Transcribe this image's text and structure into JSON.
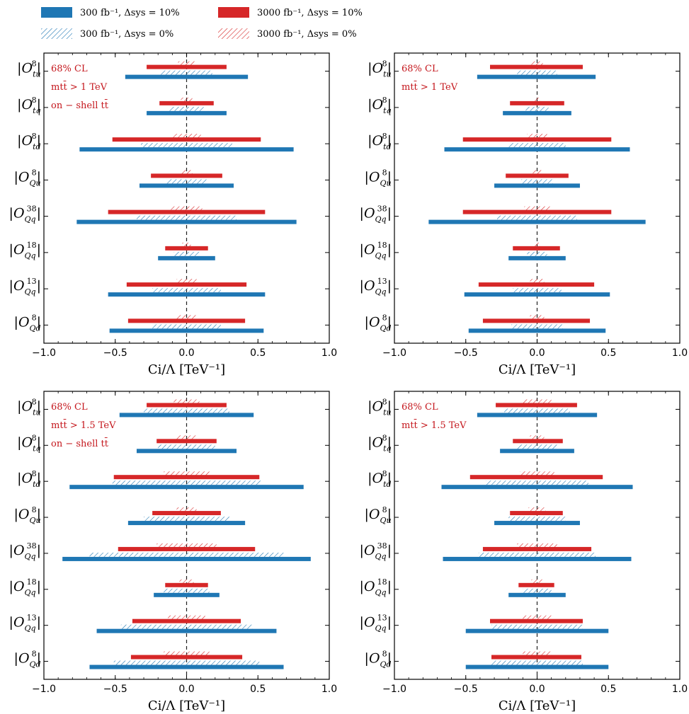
{
  "colors": {
    "blue": "#1f77b4",
    "red": "#d62728",
    "annotation": "#c4161c"
  },
  "legend": [
    {
      "label": "300 fb⁻¹,  Δsys = 10%",
      "color": "#1f77b4",
      "style": "solid"
    },
    {
      "label": "3000 fb⁻¹,  Δsys = 10%",
      "color": "#d62728",
      "style": "solid"
    },
    {
      "label": "300 fb⁻¹,  Δsys = 0%",
      "color": "#1f77b4",
      "style": "hatched"
    },
    {
      "label": "3000 fb⁻¹,  Δsys = 0%",
      "color": "#d62728",
      "style": "hatched"
    }
  ],
  "chart_data": [
    {
      "type": "bar",
      "orientation": "horizontal-interval",
      "xlabel": "Ci/Λ [TeV⁻¹]",
      "xlim": [
        -1.0,
        1.0
      ],
      "xticks": [
        "−1.0",
        "−0.5",
        "0.0",
        "0.5",
        "1.0"
      ],
      "annotations": [
        "68% CL",
        "mtt̄ > 1 TeV",
        "on − shell tt̄"
      ],
      "categories": [
        {
          "base": "O",
          "sup": "8",
          "sub": "tu"
        },
        {
          "base": "O",
          "sup": "8",
          "sub": "tq"
        },
        {
          "base": "O",
          "sup": "8",
          "sub": "td"
        },
        {
          "base": "O",
          "sup": "8",
          "sub": "Qu"
        },
        {
          "base": "O",
          "sup": "38",
          "sub": "Qq"
        },
        {
          "base": "O",
          "sup": "18",
          "sub": "Qq"
        },
        {
          "base": "O",
          "sup": "13",
          "sub": "Qq"
        },
        {
          "base": "O",
          "sup": "8",
          "sub": "Qd"
        }
      ],
      "blue_solid": [
        [
          -0.43,
          0.43
        ],
        [
          -0.28,
          0.28
        ],
        [
          -0.75,
          0.75
        ],
        [
          -0.33,
          0.33
        ],
        [
          -0.77,
          0.77
        ],
        [
          -0.2,
          0.2
        ],
        [
          -0.55,
          0.55
        ],
        [
          -0.54,
          0.54
        ]
      ],
      "blue_hatch": [
        [
          -0.18,
          0.18
        ],
        [
          -0.12,
          0.12
        ],
        [
          -0.32,
          0.32
        ],
        [
          -0.14,
          0.14
        ],
        [
          -0.35,
          0.35
        ],
        [
          -0.09,
          0.09
        ],
        [
          -0.24,
          0.24
        ],
        [
          -0.24,
          0.24
        ]
      ],
      "red_solid": [
        [
          -0.28,
          0.28
        ],
        [
          -0.19,
          0.19
        ],
        [
          -0.52,
          0.52
        ],
        [
          -0.25,
          0.25
        ],
        [
          -0.55,
          0.55
        ],
        [
          -0.15,
          0.15
        ],
        [
          -0.42,
          0.42
        ],
        [
          -0.41,
          0.41
        ]
      ],
      "red_hatch": [
        [
          -0.06,
          0.06
        ],
        [
          -0.04,
          0.04
        ],
        [
          -0.1,
          0.1
        ],
        [
          -0.04,
          0.04
        ],
        [
          -0.11,
          0.11
        ],
        [
          -0.03,
          0.03
        ],
        [
          -0.07,
          0.07
        ],
        [
          -0.07,
          0.07
        ]
      ]
    },
    {
      "type": "bar",
      "orientation": "horizontal-interval",
      "xlabel": "Ci/Λ [TeV⁻¹]",
      "xlim": [
        -1.0,
        1.0
      ],
      "xticks": [
        "−1.0",
        "−0.5",
        "0.0",
        "0.5",
        "1.0"
      ],
      "annotations": [
        "68% CL",
        "mtt̄ > 1 TeV"
      ],
      "categories": [
        {
          "base": "O",
          "sup": "8",
          "sub": "tu"
        },
        {
          "base": "O",
          "sup": "8",
          "sub": "tq"
        },
        {
          "base": "O",
          "sup": "8",
          "sub": "td"
        },
        {
          "base": "O",
          "sup": "8",
          "sub": "Qu"
        },
        {
          "base": "O",
          "sup": "38",
          "sub": "Qq"
        },
        {
          "base": "O",
          "sup": "18",
          "sub": "Qq"
        },
        {
          "base": "O",
          "sup": "13",
          "sub": "Qq"
        },
        {
          "base": "O",
          "sup": "8",
          "sub": "Qd"
        }
      ],
      "blue_solid": [
        [
          -0.42,
          0.41
        ],
        [
          -0.24,
          0.24
        ],
        [
          -0.65,
          0.65
        ],
        [
          -0.3,
          0.3
        ],
        [
          -0.76,
          0.76
        ],
        [
          -0.2,
          0.2
        ],
        [
          -0.51,
          0.51
        ],
        [
          -0.48,
          0.48
        ]
      ],
      "blue_hatch": [
        [
          -0.14,
          0.14
        ],
        [
          -0.08,
          0.08
        ],
        [
          -0.2,
          0.2
        ],
        [
          -0.11,
          0.11
        ],
        [
          -0.28,
          0.28
        ],
        [
          -0.07,
          0.07
        ],
        [
          -0.17,
          0.17
        ],
        [
          -0.18,
          0.18
        ]
      ],
      "red_solid": [
        [
          -0.33,
          0.32
        ],
        [
          -0.19,
          0.19
        ],
        [
          -0.52,
          0.52
        ],
        [
          -0.22,
          0.22
        ],
        [
          -0.52,
          0.52
        ],
        [
          -0.17,
          0.16
        ],
        [
          -0.41,
          0.4
        ],
        [
          -0.38,
          0.37
        ]
      ],
      "red_hatch": [
        [
          -0.04,
          0.04
        ],
        [
          -0.02,
          0.02
        ],
        [
          -0.07,
          0.07
        ],
        [
          -0.03,
          0.03
        ],
        [
          -0.09,
          0.09
        ],
        [
          -0.02,
          0.02
        ],
        [
          -0.05,
          0.05
        ],
        [
          -0.05,
          0.05
        ]
      ]
    },
    {
      "type": "bar",
      "orientation": "horizontal-interval",
      "xlabel": "Ci/Λ [TeV⁻¹]",
      "xlim": [
        -1.0,
        1.0
      ],
      "xticks": [
        "−1.0",
        "−0.5",
        "0.0",
        "0.5",
        "1.0"
      ],
      "annotations": [
        "68% CL",
        "mtt̄ > 1.5 TeV",
        "on − shell tt̄"
      ],
      "categories": [
        {
          "base": "O",
          "sup": "8",
          "sub": "tu"
        },
        {
          "base": "O",
          "sup": "8",
          "sub": "tq"
        },
        {
          "base": "O",
          "sup": "8",
          "sub": "td"
        },
        {
          "base": "O",
          "sup": "8",
          "sub": "Qu"
        },
        {
          "base": "O",
          "sup": "38",
          "sub": "Qq"
        },
        {
          "base": "O",
          "sup": "18",
          "sub": "Qq"
        },
        {
          "base": "O",
          "sup": "13",
          "sub": "Qq"
        },
        {
          "base": "O",
          "sup": "8",
          "sub": "Qd"
        }
      ],
      "blue_solid": [
        [
          -0.47,
          0.47
        ],
        [
          -0.35,
          0.35
        ],
        [
          -0.82,
          0.82
        ],
        [
          -0.41,
          0.41
        ],
        [
          -0.87,
          0.87
        ],
        [
          -0.23,
          0.23
        ],
        [
          -0.63,
          0.63
        ],
        [
          -0.68,
          0.68
        ]
      ],
      "blue_hatch": [
        [
          -0.3,
          0.3
        ],
        [
          -0.2,
          0.2
        ],
        [
          -0.52,
          0.52
        ],
        [
          -0.3,
          0.3
        ],
        [
          -0.68,
          0.68
        ],
        [
          -0.16,
          0.16
        ],
        [
          -0.46,
          0.46
        ],
        [
          -0.51,
          0.51
        ]
      ],
      "red_solid": [
        [
          -0.28,
          0.28
        ],
        [
          -0.21,
          0.21
        ],
        [
          -0.51,
          0.51
        ],
        [
          -0.24,
          0.24
        ],
        [
          -0.48,
          0.48
        ],
        [
          -0.15,
          0.15
        ],
        [
          -0.38,
          0.38
        ],
        [
          -0.39,
          0.39
        ]
      ],
      "red_hatch": [
        [
          -0.09,
          0.09
        ],
        [
          -0.07,
          0.07
        ],
        [
          -0.16,
          0.16
        ],
        [
          -0.07,
          0.07
        ],
        [
          -0.21,
          0.21
        ],
        [
          -0.05,
          0.05
        ],
        [
          -0.13,
          0.13
        ],
        [
          -0.16,
          0.16
        ]
      ]
    },
    {
      "type": "bar",
      "orientation": "horizontal-interval",
      "xlabel": "Ci/Λ [TeV⁻¹]",
      "xlim": [
        -1.0,
        1.0
      ],
      "xticks": [
        "−1.0",
        "−0.5",
        "0.0",
        "0.5",
        "1.0"
      ],
      "annotations": [
        "68% CL",
        "mtt̄ > 1.5 TeV"
      ],
      "categories": [
        {
          "base": "O",
          "sup": "8",
          "sub": "tu"
        },
        {
          "base": "O",
          "sup": "8",
          "sub": "tq"
        },
        {
          "base": "O",
          "sup": "8",
          "sub": "td"
        },
        {
          "base": "O",
          "sup": "8",
          "sub": "Qu"
        },
        {
          "base": "O",
          "sup": "38",
          "sub": "Qq"
        },
        {
          "base": "O",
          "sup": "18",
          "sub": "Qq"
        },
        {
          "base": "O",
          "sup": "13",
          "sub": "Qq"
        },
        {
          "base": "O",
          "sup": "8",
          "sub": "Qd"
        }
      ],
      "blue_solid": [
        [
          -0.42,
          0.42
        ],
        [
          -0.26,
          0.26
        ],
        [
          -0.67,
          0.67
        ],
        [
          -0.3,
          0.3
        ],
        [
          -0.66,
          0.66
        ],
        [
          -0.2,
          0.2
        ],
        [
          -0.5,
          0.5
        ],
        [
          -0.5,
          0.5
        ]
      ],
      "blue_hatch": [
        [
          -0.23,
          0.23
        ],
        [
          -0.14,
          0.14
        ],
        [
          -0.36,
          0.36
        ],
        [
          -0.2,
          0.2
        ],
        [
          -0.41,
          0.41
        ],
        [
          -0.1,
          0.1
        ],
        [
          -0.32,
          0.32
        ],
        [
          -0.32,
          0.32
        ]
      ],
      "red_solid": [
        [
          -0.29,
          0.28
        ],
        [
          -0.17,
          0.18
        ],
        [
          -0.47,
          0.46
        ],
        [
          -0.19,
          0.18
        ],
        [
          -0.38,
          0.38
        ],
        [
          -0.13,
          0.12
        ],
        [
          -0.33,
          0.32
        ],
        [
          -0.32,
          0.31
        ]
      ],
      "red_hatch": [
        [
          -0.1,
          0.1
        ],
        [
          -0.05,
          0.05
        ],
        [
          -0.12,
          0.12
        ],
        [
          -0.06,
          0.06
        ],
        [
          -0.14,
          0.14
        ],
        [
          -0.04,
          0.04
        ],
        [
          -0.1,
          0.1
        ],
        [
          -0.1,
          0.1
        ]
      ]
    }
  ]
}
